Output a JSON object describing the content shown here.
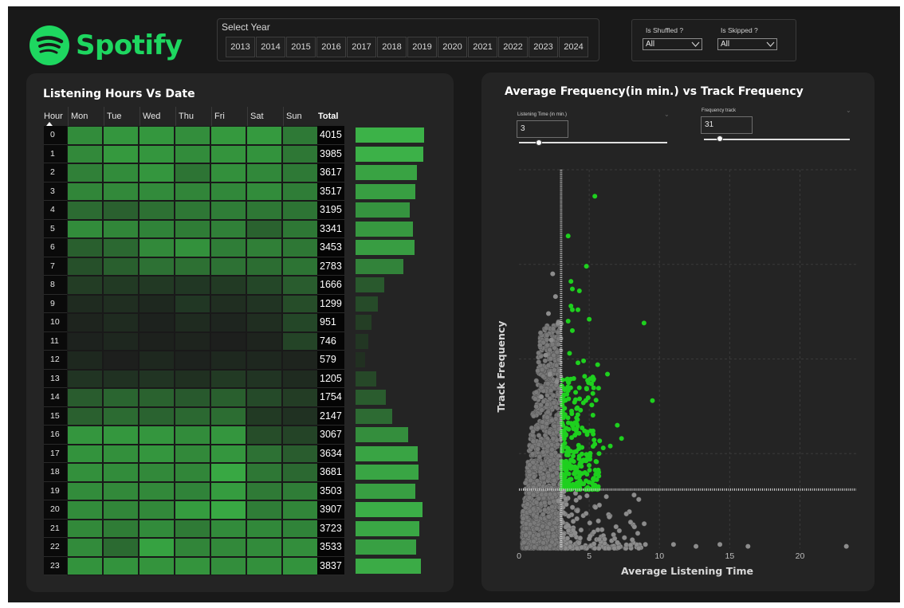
{
  "brand": {
    "name": "Spotify",
    "color": "#1ed760"
  },
  "year_slicer": {
    "title": "Select Year",
    "years": [
      "2013",
      "2014",
      "2015",
      "2016",
      "2017",
      "2018",
      "2019",
      "2020",
      "2021",
      "2022",
      "2023",
      "2024"
    ]
  },
  "filters": {
    "shuffled": {
      "label": "Is Shuffled ?",
      "value": "All"
    },
    "skipped": {
      "label": "Is Skipped ?",
      "value": "All"
    }
  },
  "heatmap": {
    "title": "Listening Hours Vs Date",
    "hour_header": "Hour",
    "days": [
      "Mon",
      "Tue",
      "Wed",
      "Thu",
      "Fri",
      "Sat",
      "Sun"
    ],
    "total_header": "Total",
    "hours": [
      "0",
      "1",
      "2",
      "3",
      "4",
      "5",
      "6",
      "7",
      "8",
      "9",
      "10",
      "11",
      "12",
      "13",
      "14",
      "15",
      "16",
      "17",
      "18",
      "19",
      "20",
      "21",
      "22",
      "23"
    ],
    "totals": [
      4015,
      3985,
      3617,
      3517,
      3195,
      3341,
      3453,
      2783,
      1666,
      1299,
      951,
      746,
      579,
      1205,
      1754,
      2147,
      3067,
      3634,
      3681,
      3503,
      3907,
      3723,
      3533,
      3837
    ],
    "intensity": [
      [
        0.74,
        0.8,
        0.81,
        0.75,
        0.82,
        0.83,
        0.61
      ],
      [
        0.72,
        0.82,
        0.8,
        0.74,
        0.79,
        0.78,
        0.6
      ],
      [
        0.66,
        0.74,
        0.8,
        0.58,
        0.76,
        0.71,
        0.61
      ],
      [
        0.7,
        0.72,
        0.73,
        0.69,
        0.71,
        0.74,
        0.64
      ],
      [
        0.52,
        0.45,
        0.55,
        0.6,
        0.64,
        0.6,
        0.58
      ],
      [
        0.74,
        0.7,
        0.68,
        0.63,
        0.66,
        0.46,
        0.6
      ],
      [
        0.44,
        0.5,
        0.72,
        0.77,
        0.64,
        0.65,
        0.6
      ],
      [
        0.34,
        0.44,
        0.56,
        0.55,
        0.56,
        0.53,
        0.58
      ],
      [
        0.22,
        0.2,
        0.19,
        0.18,
        0.2,
        0.28,
        0.42
      ],
      [
        0.1,
        0.12,
        0.08,
        0.18,
        0.12,
        0.16,
        0.32
      ],
      [
        0.05,
        0.1,
        0.04,
        0.1,
        0.06,
        0.12,
        0.28
      ],
      [
        0.04,
        0.07,
        0.03,
        0.05,
        0.02,
        0.05,
        0.26
      ],
      [
        0.08,
        0.02,
        0.08,
        0.04,
        0.08,
        0.07,
        0.05
      ],
      [
        0.16,
        0.14,
        0.16,
        0.13,
        0.2,
        0.16,
        0.1
      ],
      [
        0.42,
        0.48,
        0.46,
        0.4,
        0.44,
        0.3,
        0.22
      ],
      [
        0.45,
        0.52,
        0.47,
        0.5,
        0.53,
        0.2,
        0.14
      ],
      [
        0.8,
        0.81,
        0.8,
        0.74,
        0.8,
        0.32,
        0.26
      ],
      [
        0.78,
        0.76,
        0.8,
        0.72,
        0.8,
        0.56,
        0.42
      ],
      [
        0.76,
        0.74,
        0.72,
        0.7,
        0.92,
        0.6,
        0.5
      ],
      [
        0.74,
        0.72,
        0.72,
        0.68,
        0.84,
        0.62,
        0.64
      ],
      [
        0.74,
        0.7,
        0.72,
        0.84,
        0.92,
        0.64,
        0.7
      ],
      [
        0.72,
        0.63,
        0.73,
        0.62,
        0.73,
        0.71,
        0.68
      ],
      [
        0.73,
        0.51,
        0.88,
        0.69,
        0.72,
        0.73,
        0.75
      ],
      [
        0.78,
        0.78,
        0.79,
        0.79,
        0.75,
        0.76,
        0.78
      ]
    ]
  },
  "scatter": {
    "title": "Average Frequency(in min.) vs Track Frequency",
    "listening_filter": {
      "label": "Listening Time (in min.)",
      "value": "3"
    },
    "frequency_filter": {
      "label": "Frequency track",
      "value": "31"
    },
    "xlabel": "Average Listening Time",
    "ylabel": "Track Frequency",
    "xticks": [
      "0",
      "5",
      "10",
      "15",
      "20"
    ],
    "colors": {
      "above": "#1ed01e",
      "below": "#8c8c8c"
    }
  },
  "chart_data": {
    "type": "scatter",
    "title": "Average Frequency(in min.) vs Track Frequency",
    "xlabel": "Average Listening Time",
    "ylabel": "Track Frequency",
    "xlim": [
      0,
      24
    ],
    "ylim": [
      0,
      200
    ],
    "reference_lines": {
      "x": 3,
      "y": 31
    },
    "series": [
      {
        "name": "",
        "points": [
          [
            5.4,
            186
          ],
          [
            3.5,
            165
          ],
          [
            3.7,
            141
          ],
          [
            3.8,
            137
          ],
          [
            4.8,
            149
          ],
          [
            4.3,
            136
          ],
          [
            3.7,
            128
          ],
          [
            3.8,
            126
          ],
          [
            3.5,
            120
          ],
          [
            3.8,
            115
          ],
          [
            4.2,
            126
          ],
          [
            5,
            121
          ],
          [
            8.9,
            119
          ],
          [
            3.6,
            103
          ],
          [
            4.2,
            98
          ],
          [
            4.6,
            99
          ],
          [
            5.6,
            97
          ],
          [
            6.3,
            92
          ],
          [
            9.5,
            78
          ],
          [
            7.0,
            65
          ],
          [
            7.3,
            58
          ],
          [
            6.5,
            54
          ],
          [
            6.0,
            53
          ],
          [
            5.4,
            55
          ],
          [
            5.7,
            50
          ],
          [
            4.9,
            47
          ],
          [
            4.1,
            40
          ],
          [
            4.6,
            34
          ],
          [
            5.3,
            33
          ],
          [
            3.2,
            30
          ]
        ]
      },
      {
        "name": "",
        "points": [
          [
            2.4,
            145
          ],
          [
            2.6,
            133
          ],
          [
            2.1,
            124
          ],
          [
            2.8,
            119
          ],
          [
            2.3,
            110
          ],
          [
            1.9,
            102
          ],
          [
            2.2,
            92
          ],
          [
            2.7,
            88
          ],
          [
            1.6,
            80
          ],
          [
            2.8,
            25
          ],
          [
            3.5,
            12
          ],
          [
            4,
            8
          ],
          [
            5,
            5
          ],
          [
            7,
            3
          ],
          [
            9,
            2
          ],
          [
            11,
            2
          ],
          [
            12.6,
            1
          ],
          [
            14.3,
            2
          ],
          [
            16.3,
            1
          ],
          [
            23.3,
            1
          ]
        ]
      }
    ]
  }
}
